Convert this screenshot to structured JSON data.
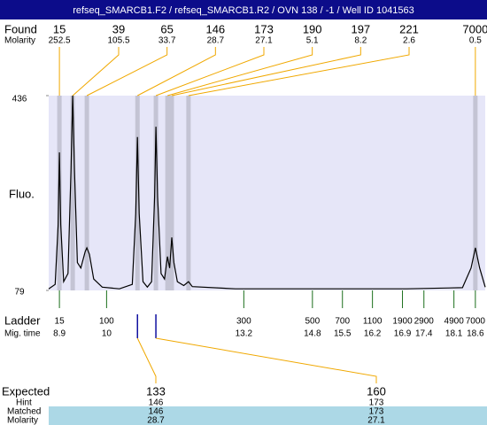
{
  "chart_data": {
    "type": "electropherogram",
    "title": "refseq_SMARCB1.F2 / refseq_SMARCB1.R2 / OVN 138 / -1 / Well ID 1041563",
    "xlim": [
      8.65,
      18.83
    ],
    "ylim": [
      79,
      436
    ],
    "yticks": [
      79,
      436
    ],
    "y_label": "Fluo.",
    "found_label": "Found",
    "molarity_label": "Molarity",
    "peaks": {
      "size": [
        15,
        39,
        65,
        146,
        173,
        190,
        197,
        221,
        7000
      ],
      "molarity": [
        252.5,
        105.5,
        33.7,
        28.7,
        27.1,
        5.1,
        8.2,
        2.6,
        0.5
      ],
      "time": [
        8.9,
        9.21,
        9.54,
        10.72,
        11.15,
        11.42,
        11.52,
        11.91,
        18.6
      ]
    },
    "ladder_label": "Ladder",
    "time_label": "Mig. time",
    "ladder": {
      "size": [
        15,
        100,
        300,
        500,
        700,
        1100,
        1900,
        2900,
        4900,
        7000
      ],
      "time": [
        8.9,
        10,
        13.2,
        14.8,
        15.5,
        16.2,
        16.9,
        17.4,
        18.1,
        18.6
      ]
    },
    "trace": {
      "color": "#000000",
      "x": [
        8.65,
        8.8,
        8.87,
        8.9,
        8.93,
        9.0,
        9.1,
        9.17,
        9.21,
        9.25,
        9.32,
        9.4,
        9.5,
        9.54,
        9.6,
        9.7,
        9.9,
        10.3,
        10.6,
        10.68,
        10.72,
        10.76,
        10.85,
        10.95,
        11.05,
        11.12,
        11.15,
        11.19,
        11.27,
        11.35,
        11.42,
        11.47,
        11.52,
        11.57,
        11.65,
        11.8,
        11.91,
        12.0,
        13,
        15,
        17,
        18.3,
        18.5,
        18.6,
        18.7,
        18.83
      ],
      "y": [
        82,
        90,
        200,
        332,
        200,
        95,
        110,
        300,
        436,
        300,
        130,
        120,
        150,
        157,
        145,
        100,
        85,
        82,
        90,
        220,
        360,
        220,
        95,
        85,
        95,
        250,
        379,
        250,
        110,
        100,
        141,
        120,
        176,
        130,
        95,
        88,
        95,
        86,
        82,
        82,
        82,
        84,
        120,
        157,
        120,
        85
      ]
    },
    "expected_label": "Expected",
    "hint_label": "Hint",
    "matched_label": "Matched",
    "matched_molarity_label": "Molarity",
    "expected": {
      "size": [
        133,
        160
      ],
      "hint": [
        146,
        173
      ],
      "matched": [
        146,
        173
      ],
      "molarity": [
        28.7,
        27.1
      ],
      "time": [
        10.72,
        11.15
      ]
    }
  }
}
